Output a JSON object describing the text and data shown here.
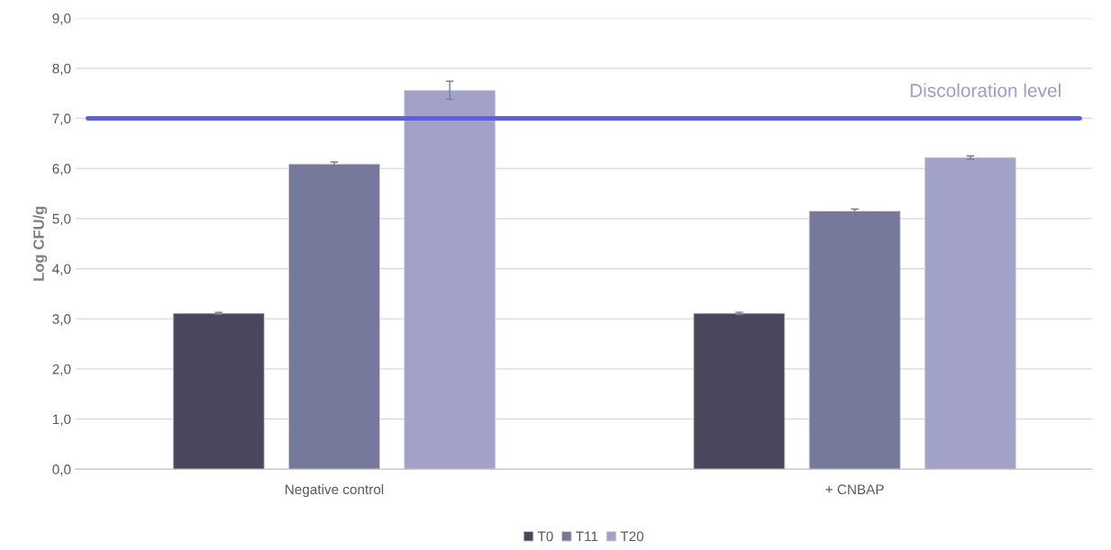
{
  "chart_data": {
    "type": "bar",
    "ylabel": "Log CFU/g",
    "categories": [
      "Negative control",
      "+ CNBAP"
    ],
    "series": [
      {
        "name": "T0",
        "color": "#4a475c",
        "values": [
          3.11,
          3.11
        ],
        "errors": [
          0.02,
          0.02
        ]
      },
      {
        "name": "T11",
        "color": "#77799b",
        "values": [
          6.09,
          5.15
        ],
        "errors": [
          0.04,
          0.04
        ]
      },
      {
        "name": "T20",
        "color": "#a2a1c8",
        "values": [
          7.56,
          6.22
        ],
        "errors": [
          0.18,
          0.03
        ]
      }
    ],
    "ylim": [
      0,
      9
    ],
    "yticks": [
      {
        "value": 0,
        "label": "0,0"
      },
      {
        "value": 1,
        "label": "1,0"
      },
      {
        "value": 2,
        "label": "2,0"
      },
      {
        "value": 3,
        "label": "3,0"
      },
      {
        "value": 4,
        "label": "4,0"
      },
      {
        "value": 5,
        "label": "5,0"
      },
      {
        "value": 6,
        "label": "6,0"
      },
      {
        "value": 7,
        "label": "7,0"
      },
      {
        "value": 8,
        "label": "8,0"
      },
      {
        "value": 9,
        "label": "9,0"
      }
    ],
    "ref_lines": [
      {
        "axis": "y",
        "value": 7,
        "label": "Discoloration level",
        "color": "#5b5cf0"
      }
    ],
    "grid": "y",
    "legend": "bottom"
  }
}
